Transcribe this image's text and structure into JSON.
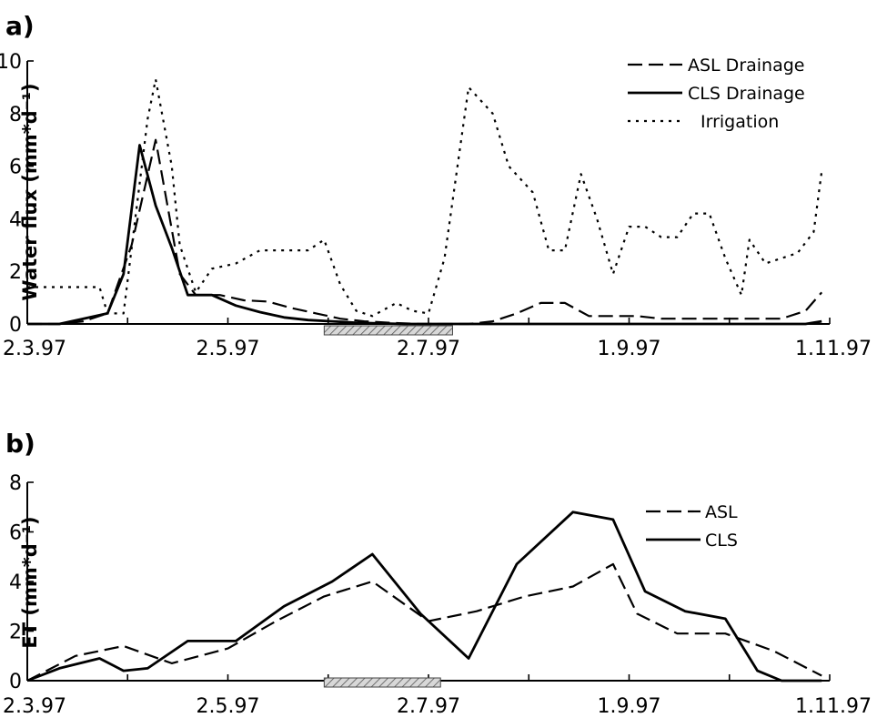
{
  "chart_data": [
    {
      "type": "line",
      "panel_label": "a)",
      "title": "",
      "xlabel": "",
      "ylabel": "Water flux (mm*d⁻¹)",
      "ylim": [
        0,
        10
      ],
      "yticks": [
        0,
        2,
        4,
        6,
        8,
        10
      ],
      "x_axis": "time, 2.3.97 to 1.11.97",
      "x_tick_labels": [
        "2.3.97",
        "2.5.97",
        "2.7.97",
        "1.9.97",
        "1.11.97"
      ],
      "x_tick_positions": [
        0,
        0.25,
        0.5,
        0.75,
        1.0
      ],
      "x_minor_ticks": 8,
      "grid": false,
      "legend_position": "top-right",
      "highlight_bar": {
        "start": 0.37,
        "end": 0.53,
        "pattern": "hatched"
      },
      "series": [
        {
          "name": "ASL Drainage",
          "style": "dashed",
          "x": [
            0,
            0.04,
            0.07,
            0.1,
            0.13,
            0.16,
            0.19,
            0.21,
            0.24,
            0.27,
            0.3,
            0.33,
            0.36,
            0.39,
            0.42,
            0.45,
            0.49,
            0.52,
            0.55,
            0.58,
            0.61,
            0.64,
            0.67,
            0.7,
            0.73,
            0.76,
            0.79,
            0.82,
            0.85,
            0.88,
            0.91,
            0.94,
            0.97,
            0.99
          ],
          "values": [
            0.0,
            0.0,
            0.1,
            0.4,
            3.0,
            7.0,
            1.9,
            1.1,
            1.1,
            0.9,
            0.85,
            0.6,
            0.4,
            0.2,
            0.1,
            0.05,
            0.0,
            0.0,
            0.0,
            0.1,
            0.4,
            0.8,
            0.8,
            0.3,
            0.3,
            0.3,
            0.2,
            0.2,
            0.2,
            0.2,
            0.2,
            0.2,
            0.5,
            1.2
          ]
        },
        {
          "name": "CLS Drainage",
          "style": "solid",
          "x": [
            0,
            0.04,
            0.07,
            0.1,
            0.12,
            0.14,
            0.16,
            0.18,
            0.2,
            0.23,
            0.26,
            0.29,
            0.32,
            0.35,
            0.38,
            0.41,
            0.44,
            0.47,
            0.5,
            0.55,
            0.6,
            0.7,
            0.8,
            0.9,
            0.97,
            0.99
          ],
          "values": [
            0.0,
            0.0,
            0.2,
            0.4,
            1.9,
            6.8,
            4.5,
            2.9,
            1.1,
            1.1,
            0.7,
            0.45,
            0.25,
            0.15,
            0.1,
            0.05,
            0.02,
            0.0,
            0.0,
            0.0,
            0.0,
            0.0,
            0.0,
            0.0,
            0.0,
            0.1
          ]
        },
        {
          "name": "Irrigation",
          "style": "dotted",
          "x": [
            0,
            0.04,
            0.09,
            0.1,
            0.12,
            0.15,
            0.16,
            0.18,
            0.19,
            0.21,
            0.23,
            0.26,
            0.29,
            0.32,
            0.34,
            0.35,
            0.37,
            0.39,
            0.41,
            0.43,
            0.46,
            0.48,
            0.5,
            0.52,
            0.55,
            0.58,
            0.6,
            0.63,
            0.65,
            0.67,
            0.69,
            0.71,
            0.73,
            0.75,
            0.77,
            0.79,
            0.81,
            0.83,
            0.85,
            0.87,
            0.89,
            0.9,
            0.92,
            0.94,
            0.96,
            0.98,
            0.99
          ],
          "values": [
            1.4,
            1.4,
            1.4,
            0.4,
            0.4,
            7.8,
            9.3,
            6.0,
            3.0,
            1.2,
            2.1,
            2.3,
            2.8,
            2.8,
            2.8,
            2.8,
            3.2,
            1.5,
            0.5,
            0.3,
            0.8,
            0.5,
            0.4,
            2.5,
            9.0,
            8.0,
            6.0,
            5.0,
            2.8,
            2.8,
            5.7,
            4.0,
            1.9,
            3.7,
            3.7,
            3.3,
            3.3,
            4.2,
            4.2,
            2.5,
            1.1,
            3.2,
            2.3,
            2.5,
            2.7,
            3.5,
            5.8
          ]
        }
      ]
    },
    {
      "type": "line",
      "panel_label": "b)",
      "title": "",
      "xlabel": "",
      "ylabel": "ET (mm*d⁻¹)",
      "ylim": [
        0,
        8
      ],
      "yticks": [
        0,
        2,
        4,
        6,
        8
      ],
      "x_axis": "time, 2.3.97 to 1.11.97",
      "x_tick_labels": [
        "2.3.97",
        "2.5.97",
        "2.7.97",
        "1.9.97",
        "1.11.97"
      ],
      "x_tick_positions": [
        0,
        0.25,
        0.5,
        0.75,
        1.0
      ],
      "x_minor_ticks": 8,
      "grid": false,
      "legend_position": "top-right",
      "highlight_bar": {
        "start": 0.37,
        "end": 0.515,
        "pattern": "hatched"
      },
      "series": [
        {
          "name": "ASL",
          "style": "dashed",
          "x": [
            0,
            0.03,
            0.06,
            0.12,
            0.18,
            0.25,
            0.31,
            0.37,
            0.43,
            0.5,
            0.56,
            0.62,
            0.68,
            0.73,
            0.76,
            0.81,
            0.87,
            0.93,
            0.99
          ],
          "values": [
            0.0,
            0.5,
            1.0,
            1.4,
            0.7,
            1.3,
            2.4,
            3.4,
            4.0,
            2.4,
            2.8,
            3.4,
            3.8,
            4.7,
            2.7,
            1.9,
            1.9,
            1.2,
            0.2
          ]
        },
        {
          "name": "CLS",
          "style": "solid",
          "x": [
            0,
            0.04,
            0.09,
            0.12,
            0.15,
            0.2,
            0.26,
            0.32,
            0.38,
            0.43,
            0.49,
            0.55,
            0.61,
            0.68,
            0.73,
            0.77,
            0.82,
            0.87,
            0.91,
            0.94,
            0.97,
            0.99
          ],
          "values": [
            0.0,
            0.5,
            0.9,
            0.4,
            0.5,
            1.6,
            1.6,
            3.0,
            4.0,
            5.1,
            2.7,
            0.9,
            4.7,
            6.8,
            6.5,
            3.6,
            2.8,
            2.5,
            0.4,
            0.0,
            0.0,
            0.0
          ]
        }
      ]
    }
  ]
}
